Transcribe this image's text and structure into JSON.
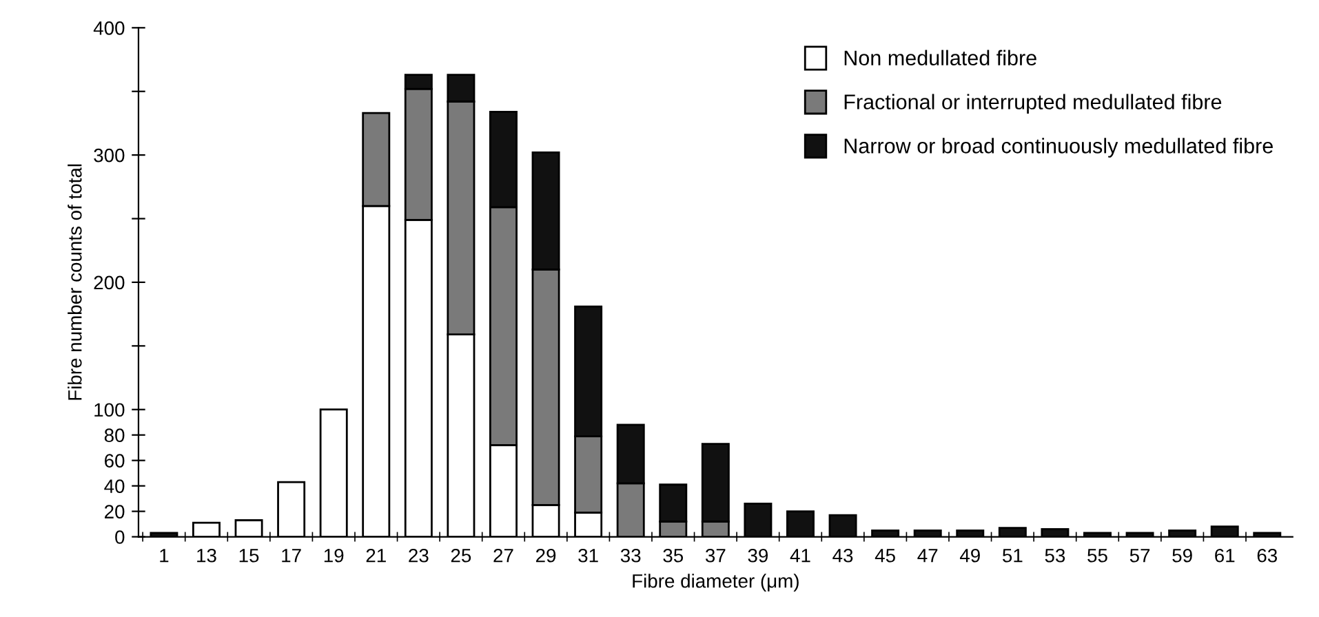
{
  "chart_data": {
    "type": "bar",
    "stacked": true,
    "xlabel": "Fibre diameter (μm)",
    "ylabel": "Fibre number counts of total",
    "categories": [
      "1",
      "13",
      "15",
      "17",
      "19",
      "21",
      "23",
      "25",
      "27",
      "29",
      "31",
      "33",
      "35",
      "37",
      "39",
      "41",
      "43",
      "45",
      "47",
      "49",
      "51",
      "53",
      "55",
      "57",
      "59",
      "61",
      "63"
    ],
    "series": [
      {
        "name": "Non medullated fibre",
        "color": "#ffffff",
        "values": [
          null,
          11,
          13,
          43,
          100,
          260,
          249,
          159,
          72,
          25,
          19,
          null,
          null,
          null,
          null,
          null,
          null,
          null,
          null,
          null,
          null,
          null,
          null,
          null,
          null,
          null,
          null
        ]
      },
      {
        "name": "Fractional or interrupted medullated fibre",
        "color": "#7a7a7a",
        "values": [
          null,
          null,
          null,
          null,
          null,
          73,
          103,
          183,
          187,
          185,
          60,
          42,
          12,
          12,
          null,
          null,
          null,
          null,
          null,
          null,
          null,
          null,
          null,
          null,
          null,
          null,
          null
        ]
      },
      {
        "name": "Narrow or broad continuously medullated fibre",
        "color": "#111111",
        "values": [
          3,
          null,
          null,
          null,
          null,
          null,
          11,
          21,
          75,
          92,
          102,
          46,
          29,
          61,
          26,
          20,
          17,
          5,
          5,
          5,
          7,
          6,
          3,
          3,
          5,
          8,
          3
        ]
      }
    ],
    "ylim": [
      0,
      400
    ],
    "yticks": [
      0,
      20,
      40,
      60,
      80,
      100,
      {
        "value": 150,
        "label": null
      },
      200,
      {
        "value": 250,
        "label": null
      },
      300,
      {
        "value": 350,
        "label": null
      },
      400
    ],
    "legend": "top right"
  }
}
